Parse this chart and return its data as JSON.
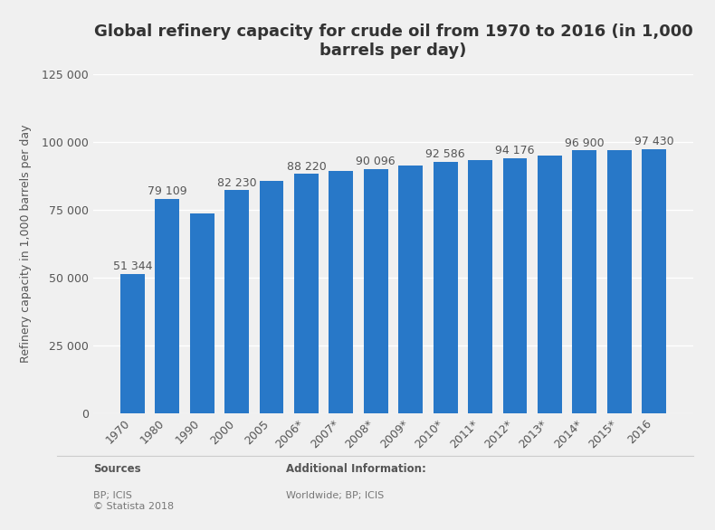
{
  "title": "Global refinery capacity for crude oil from 1970 to 2016 (in 1,000\nbarrels per day)",
  "ylabel": "Refinery capacity in 1,000 barrels per day",
  "categories": [
    "1970",
    "1980",
    "1990",
    "2000",
    "2005",
    "2006*",
    "2007*",
    "2008*",
    "2009*",
    "2010*",
    "2011*",
    "2012*",
    "2013*",
    "2014*",
    "2015*",
    "2016"
  ],
  "values": [
    51344,
    79109,
    73770,
    82230,
    85700,
    88220,
    89500,
    90096,
    91200,
    92586,
    93200,
    94176,
    95000,
    96900,
    97100,
    97430
  ],
  "bar_color": "#2878c8",
  "bar_labels": [
    "51 344",
    "79 109",
    null,
    "82 230",
    null,
    "88 220",
    null,
    "90 096",
    null,
    "92 586",
    null,
    "94 176",
    null,
    "96 900",
    null,
    "97 430"
  ],
  "ylim": [
    0,
    125000
  ],
  "yticks": [
    0,
    25000,
    50000,
    75000,
    100000,
    125000
  ],
  "ytick_labels": [
    "0",
    "25 000",
    "50 000",
    "75 000",
    "100 000",
    "125 000"
  ],
  "background_color": "#f0f0f0",
  "plot_background_color": "#f0f0f0",
  "grid_color": "#ffffff",
  "title_fontsize": 13,
  "label_fontsize": 9,
  "tick_fontsize": 9,
  "footer_sources_bold": "Sources",
  "footer_sources": "BP; ICIS\n© Statista 2018",
  "footer_addinfo_bold": "Additional Information:",
  "footer_addinfo": "Worldwide; BP; ICIS"
}
